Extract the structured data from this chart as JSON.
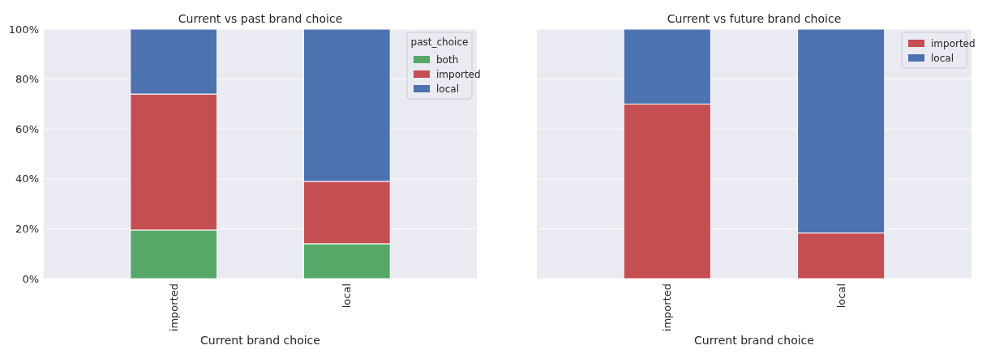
{
  "chart_data": [
    {
      "type": "bar",
      "title": "Current vs past brand choice",
      "xlabel": "Current brand choice",
      "categories": [
        "imported",
        "local"
      ],
      "stacked": true,
      "ylim": [
        0,
        100
      ],
      "yticks": [
        {
          "value": 0,
          "label": "0%"
        },
        {
          "value": 20,
          "label": "20%"
        },
        {
          "value": 40,
          "label": "40%"
        },
        {
          "value": 60,
          "label": "60%"
        },
        {
          "value": 80,
          "label": "80%"
        },
        {
          "value": 100,
          "label": "100%"
        }
      ],
      "grid": "y",
      "legend": "top right",
      "legend_title": "past_choice",
      "series": [
        {
          "name": "both",
          "color": "#55a868",
          "values": [
            19.5,
            14
          ]
        },
        {
          "name": "imported",
          "color": "#c44e52",
          "values": [
            54.5,
            25
          ]
        },
        {
          "name": "local",
          "color": "#4c72b0",
          "values": [
            26,
            61
          ]
        }
      ]
    },
    {
      "type": "bar",
      "title": "Current vs future brand choice",
      "xlabel": "Current brand choice",
      "categories": [
        "imported",
        "local"
      ],
      "stacked": true,
      "ylim": [
        0,
        100
      ],
      "yticks": [
        {
          "value": 0,
          "label": null
        },
        {
          "value": 20,
          "label": null
        },
        {
          "value": 40,
          "label": null
        },
        {
          "value": 60,
          "label": null
        },
        {
          "value": 80,
          "label": null
        },
        {
          "value": 100,
          "label": null
        }
      ],
      "grid": "y",
      "legend": "top right",
      "tick_labels": "x",
      "series": [
        {
          "name": "imported",
          "color": "#c44e52",
          "values": [
            70,
            18.3
          ]
        },
        {
          "name": "local",
          "color": "#4c72b0",
          "values": [
            30,
            81.7
          ]
        }
      ]
    }
  ]
}
